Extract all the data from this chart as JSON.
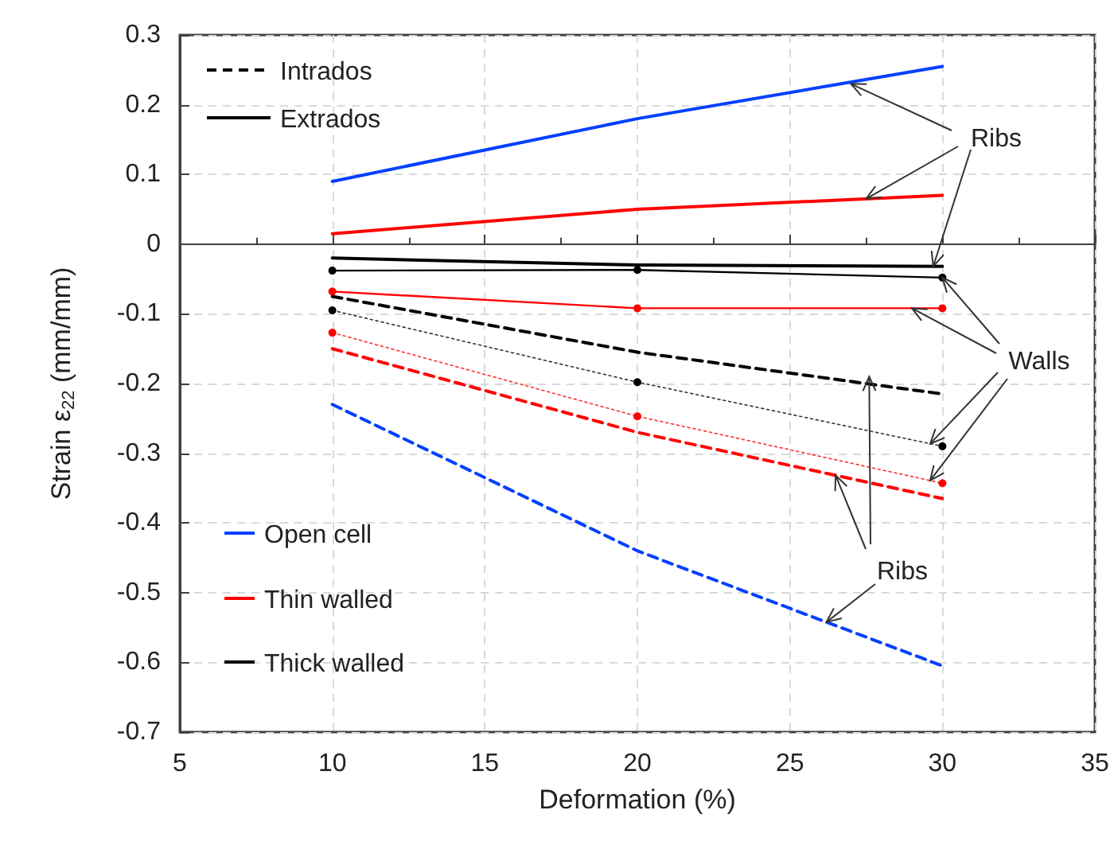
{
  "chart_data": {
    "type": "line",
    "xlabel": "Deformation (%)",
    "ylabel": "Strain ε$_{22}$ (mm/mm)",
    "x": [
      10,
      20,
      30
    ],
    "xlim": [
      5,
      35
    ],
    "xticks": [
      5,
      10,
      15,
      20,
      25,
      30,
      35
    ],
    "ylim": [
      -0.7,
      0.3
    ],
    "yticks": [
      {
        "value": -0.7,
        "label": "-0.7"
      },
      {
        "value": -0.6,
        "label": "-0.6"
      },
      {
        "value": -0.5,
        "label": "-0.5"
      },
      {
        "value": -0.4,
        "label": "-0.4"
      },
      {
        "value": -0.3,
        "label": "-0.3"
      },
      {
        "value": -0.2,
        "label": "-0.2"
      },
      {
        "value": -0.1,
        "label": "-0.1"
      },
      {
        "value": 0,
        "label": "0"
      },
      {
        "value": 0.1,
        "label": "0.1"
      },
      {
        "value": 0.2,
        "label": "0.2"
      },
      {
        "value": 0.3,
        "label": "0.3"
      }
    ],
    "grid": true,
    "marker": "none",
    "series": [
      {
        "color": "#0040ff",
        "values": [
          0.09,
          0.18,
          0.255
        ],
        "line_style": "solid"
      },
      {
        "color": "#ff0000",
        "values": [
          0.015,
          0.05,
          0.07
        ],
        "line_style": "solid"
      },
      {
        "color": "#000000",
        "values": [
          -0.02,
          -0.03,
          -0.032
        ],
        "line_style": "solid"
      },
      {
        "color": "#000000",
        "values": [
          -0.038,
          -0.037,
          -0.048
        ],
        "line_style": "solid",
        "marker": "circle"
      },
      {
        "color": "#ff0000",
        "values": [
          -0.068,
          -0.092,
          -0.092
        ],
        "line_style": "solid",
        "marker": "circle"
      },
      {
        "color": "#000000",
        "values": [
          -0.075,
          -0.155,
          -0.215
        ],
        "line_style": "dashed"
      },
      {
        "color": "#000000",
        "values": [
          -0.095,
          -0.198,
          -0.29
        ],
        "line_style": "dotted",
        "marker": "circle"
      },
      {
        "color": "#ff0000",
        "values": [
          -0.15,
          -0.27,
          -0.365
        ],
        "line_style": "dashed"
      },
      {
        "color": "#ff0000",
        "values": [
          -0.127,
          -0.247,
          -0.343
        ],
        "line_style": "dotted",
        "marker": "circle"
      },
      {
        "color": "#0040ff",
        "values": [
          -0.23,
          -0.44,
          -0.605
        ],
        "line_style": "dashed"
      }
    ],
    "annotations": [
      "Intrados",
      "Extrados",
      "Open cell",
      "Thin walled",
      "Thick walled",
      {
        "text": "Ribs",
        "x": 27,
        "y": 0.23
      },
      {
        "text": "Walls",
        "x": 30,
        "y": -0.048
      },
      {
        "text": "Ribs",
        "x": 27.6,
        "y": -0.19
      }
    ]
  }
}
